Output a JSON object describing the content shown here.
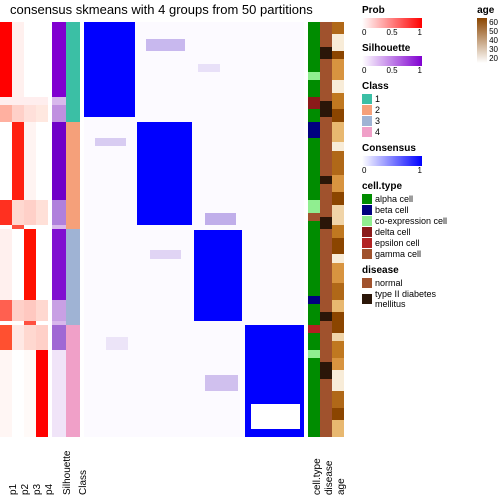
{
  "title": "consensus skmeans with 4 groups from 50 partitions",
  "column_labels": [
    "p1",
    "p2",
    "p3",
    "p4",
    "Silhouette",
    "Class",
    "",
    "cell.type",
    "disease",
    "age"
  ],
  "prob_columns": {
    "p1": [
      {
        "h": 0.18,
        "c": "#ff0000"
      },
      {
        "h": 0.02,
        "c": "#ffeeee"
      },
      {
        "h": 0.04,
        "c": "#ffb0a0"
      },
      {
        "h": 0.19,
        "c": "#ffffff"
      },
      {
        "h": 0.06,
        "c": "#ff3020"
      },
      {
        "h": 0.01,
        "c": "#ffffff"
      },
      {
        "h": 0.17,
        "c": "#fff0ee"
      },
      {
        "h": 0.05,
        "c": "#ff6050"
      },
      {
        "h": 0.01,
        "c": "#ffffff"
      },
      {
        "h": 0.06,
        "c": "#ff5030"
      },
      {
        "h": 0.21,
        "c": "#fff6f4"
      }
    ],
    "p2": [
      {
        "h": 0.18,
        "c": "#fff0ee"
      },
      {
        "h": 0.02,
        "c": "#ffeeee"
      },
      {
        "h": 0.04,
        "c": "#ffd0c8"
      },
      {
        "h": 0.19,
        "c": "#ff2010"
      },
      {
        "h": 0.06,
        "c": "#ffd8d0"
      },
      {
        "h": 0.01,
        "c": "#ff5040"
      },
      {
        "h": 0.17,
        "c": "#ffffff"
      },
      {
        "h": 0.05,
        "c": "#ffd0c8"
      },
      {
        "h": 0.01,
        "c": "#ffffff"
      },
      {
        "h": 0.06,
        "c": "#ffe8e4"
      },
      {
        "h": 0.21,
        "c": "#ffffff"
      }
    ],
    "p3": [
      {
        "h": 0.18,
        "c": "#ffffff"
      },
      {
        "h": 0.02,
        "c": "#ffeeee"
      },
      {
        "h": 0.04,
        "c": "#ffe0da"
      },
      {
        "h": 0.19,
        "c": "#fff4f2"
      },
      {
        "h": 0.06,
        "c": "#ffd0c8"
      },
      {
        "h": 0.01,
        "c": "#ffffff"
      },
      {
        "h": 0.17,
        "c": "#ff1000"
      },
      {
        "h": 0.05,
        "c": "#ffc8c0"
      },
      {
        "h": 0.01,
        "c": "#ff5040"
      },
      {
        "h": 0.06,
        "c": "#ffd8d0"
      },
      {
        "h": 0.21,
        "c": "#fffaf8"
      }
    ],
    "p4": [
      {
        "h": 0.18,
        "c": "#ffffff"
      },
      {
        "h": 0.02,
        "c": "#ffeeee"
      },
      {
        "h": 0.04,
        "c": "#ffe8e0"
      },
      {
        "h": 0.19,
        "c": "#ffffff"
      },
      {
        "h": 0.06,
        "c": "#ffe0d8"
      },
      {
        "h": 0.01,
        "c": "#ffffff"
      },
      {
        "h": 0.17,
        "c": "#ffffff"
      },
      {
        "h": 0.05,
        "c": "#ffd8d0"
      },
      {
        "h": 0.01,
        "c": "#ffffff"
      },
      {
        "h": 0.06,
        "c": "#ffd0c8"
      },
      {
        "h": 0.21,
        "c": "#ff0000"
      }
    ]
  },
  "silhouette": [
    {
      "h": 0.18,
      "c": "#8000d0"
    },
    {
      "h": 0.02,
      "c": "#d8b8ec"
    },
    {
      "h": 0.04,
      "c": "#c090e0"
    },
    {
      "h": 0.19,
      "c": "#7000c8"
    },
    {
      "h": 0.06,
      "c": "#b080dc"
    },
    {
      "h": 0.01,
      "c": "#d8b8ec"
    },
    {
      "h": 0.17,
      "c": "#8010d0"
    },
    {
      "h": 0.05,
      "c": "#c8a0e4"
    },
    {
      "h": 0.01,
      "c": "#d8b8ec"
    },
    {
      "h": 0.06,
      "c": "#a068d4"
    },
    {
      "h": 0.21,
      "c": "#f0e4f8"
    }
  ],
  "class_col": [
    {
      "h": 0.24,
      "c": "#3bbfa5"
    },
    {
      "h": 0.26,
      "c": "#f5a07a"
    },
    {
      "h": 0.23,
      "c": "#9fb3d4"
    },
    {
      "h": 0.27,
      "c": "#f0a0c8"
    }
  ],
  "consensus_blocks": [
    {
      "t": 0.0,
      "l": 0.0,
      "h": 0.23,
      "w": 0.23
    },
    {
      "t": 0.24,
      "l": 0.24,
      "h": 0.25,
      "w": 0.25
    },
    {
      "t": 0.5,
      "l": 0.5,
      "h": 0.22,
      "w": 0.22
    },
    {
      "t": 0.73,
      "l": 0.73,
      "h": 0.27,
      "w": 0.27
    }
  ],
  "consensus_noise": [
    {
      "t": 0.04,
      "l": 0.28,
      "h": 0.03,
      "w": 0.18,
      "c": "#c8b8ee"
    },
    {
      "t": 0.1,
      "l": 0.52,
      "h": 0.02,
      "w": 0.1,
      "c": "#e8e0f8"
    },
    {
      "t": 0.28,
      "l": 0.05,
      "h": 0.02,
      "w": 0.14,
      "c": "#d8ccf2"
    },
    {
      "t": 0.46,
      "l": 0.55,
      "h": 0.03,
      "w": 0.14,
      "c": "#c0aeea"
    },
    {
      "t": 0.55,
      "l": 0.3,
      "h": 0.02,
      "w": 0.14,
      "c": "#e0d4f4"
    },
    {
      "t": 0.76,
      "l": 0.1,
      "h": 0.03,
      "w": 0.1,
      "c": "#ece4f8"
    },
    {
      "t": 0.85,
      "l": 0.55,
      "h": 0.04,
      "w": 0.15,
      "c": "#d0c0ee"
    },
    {
      "t": 0.92,
      "l": 0.76,
      "h": 0.06,
      "w": 0.22,
      "c": "#ffffff"
    }
  ],
  "consensus_block_color": "#0000ff",
  "consensus_bg": "#fcfaff",
  "cell_type": [
    {
      "h": 0.12,
      "c": "#008c00"
    },
    {
      "h": 0.02,
      "c": "#90ee90"
    },
    {
      "h": 0.04,
      "c": "#008c00"
    },
    {
      "h": 0.03,
      "c": "#8b1a1a"
    },
    {
      "h": 0.03,
      "c": "#008c00"
    },
    {
      "h": 0.04,
      "c": "#000080"
    },
    {
      "h": 0.15,
      "c": "#008c00"
    },
    {
      "h": 0.03,
      "c": "#90ee90"
    },
    {
      "h": 0.02,
      "c": "#a0522d"
    },
    {
      "h": 0.18,
      "c": "#008c00"
    },
    {
      "h": 0.02,
      "c": "#000080"
    },
    {
      "h": 0.05,
      "c": "#008c00"
    },
    {
      "h": 0.02,
      "c": "#b22222"
    },
    {
      "h": 0.04,
      "c": "#008c00"
    },
    {
      "h": 0.02,
      "c": "#90ee90"
    },
    {
      "h": 0.19,
      "c": "#008c00"
    }
  ],
  "disease": [
    {
      "h": 0.06,
      "c": "#a0522d"
    },
    {
      "h": 0.03,
      "c": "#2b1608"
    },
    {
      "h": 0.1,
      "c": "#a0522d"
    },
    {
      "h": 0.04,
      "c": "#2b1608"
    },
    {
      "h": 0.14,
      "c": "#a0522d"
    },
    {
      "h": 0.02,
      "c": "#2b1608"
    },
    {
      "h": 0.08,
      "c": "#a0522d"
    },
    {
      "h": 0.03,
      "c": "#2b1608"
    },
    {
      "h": 0.2,
      "c": "#a0522d"
    },
    {
      "h": 0.02,
      "c": "#2b1608"
    },
    {
      "h": 0.1,
      "c": "#a0522d"
    },
    {
      "h": 0.04,
      "c": "#2b1608"
    },
    {
      "h": 0.14,
      "c": "#a0522d"
    }
  ],
  "age": [
    {
      "h": 0.03,
      "c": "#b06818"
    },
    {
      "h": 0.04,
      "c": "#f8ecd8"
    },
    {
      "h": 0.02,
      "c": "#8b4500"
    },
    {
      "h": 0.05,
      "c": "#d89440"
    },
    {
      "h": 0.03,
      "c": "#f8ecd8"
    },
    {
      "h": 0.04,
      "c": "#c07820"
    },
    {
      "h": 0.03,
      "c": "#8b4500"
    },
    {
      "h": 0.05,
      "c": "#e8b870"
    },
    {
      "h": 0.02,
      "c": "#f8ecd8"
    },
    {
      "h": 0.06,
      "c": "#b06818"
    },
    {
      "h": 0.04,
      "c": "#d89440"
    },
    {
      "h": 0.03,
      "c": "#8b4500"
    },
    {
      "h": 0.05,
      "c": "#f0d4a8"
    },
    {
      "h": 0.03,
      "c": "#c07820"
    },
    {
      "h": 0.04,
      "c": "#8b4500"
    },
    {
      "h": 0.02,
      "c": "#f8ecd8"
    },
    {
      "h": 0.05,
      "c": "#d89440"
    },
    {
      "h": 0.04,
      "c": "#b06818"
    },
    {
      "h": 0.03,
      "c": "#e8b870"
    },
    {
      "h": 0.05,
      "c": "#8b4500"
    },
    {
      "h": 0.02,
      "c": "#f0d4a8"
    },
    {
      "h": 0.04,
      "c": "#c07820"
    },
    {
      "h": 0.03,
      "c": "#d89440"
    },
    {
      "h": 0.05,
      "c": "#f8ecd8"
    },
    {
      "h": 0.04,
      "c": "#b06818"
    },
    {
      "h": 0.03,
      "c": "#8b4500"
    },
    {
      "h": 0.04,
      "c": "#e8b870"
    }
  ],
  "legends": {
    "prob": {
      "title": "Prob",
      "type": "hgrad",
      "stops": [
        "#ffffff",
        "#ff0000"
      ],
      "ticks": [
        "0",
        "0.5",
        "1"
      ]
    },
    "silhouette": {
      "title": "Silhouette",
      "type": "hgrad",
      "stops": [
        "#ffffff",
        "#8000d0"
      ],
      "ticks": [
        "0",
        "0.5",
        "1"
      ]
    },
    "class": {
      "title": "Class",
      "type": "swatch",
      "items": [
        {
          "c": "#3bbfa5",
          "l": "1"
        },
        {
          "c": "#f5a07a",
          "l": "2"
        },
        {
          "c": "#9fb3d4",
          "l": "3"
        },
        {
          "c": "#f0a0c8",
          "l": "4"
        }
      ]
    },
    "consensus": {
      "title": "Consensus",
      "type": "hgrad",
      "stops": [
        "#ffffff",
        "#0000ff"
      ],
      "ticks": [
        "0",
        "",
        "1"
      ]
    },
    "celltype": {
      "title": "cell.type",
      "type": "swatch",
      "items": [
        {
          "c": "#008c00",
          "l": "alpha cell"
        },
        {
          "c": "#000080",
          "l": "beta cell"
        },
        {
          "c": "#90ee90",
          "l": "co-expression cell"
        },
        {
          "c": "#8b1a1a",
          "l": "delta cell"
        },
        {
          "c": "#b22222",
          "l": "epsilon cell"
        },
        {
          "c": "#a0522d",
          "l": "gamma cell"
        }
      ]
    },
    "disease": {
      "title": "disease",
      "type": "swatch",
      "items": [
        {
          "c": "#a0522d",
          "l": "normal"
        },
        {
          "c": "#2b1608",
          "l": "type II diabetes mellitus"
        }
      ]
    },
    "age": {
      "title": "age",
      "type": "vgrad",
      "stops": [
        "#ffffff",
        "#8b4500"
      ],
      "ticks": [
        "60",
        "50",
        "40",
        "30",
        "20"
      ]
    }
  }
}
